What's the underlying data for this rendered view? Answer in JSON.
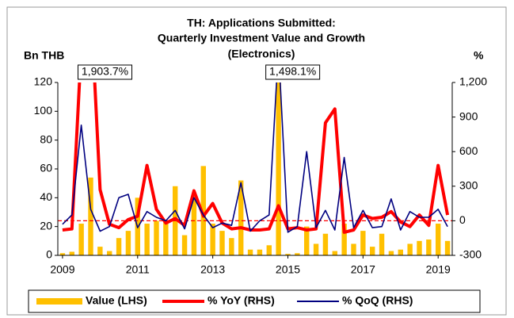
{
  "chart_data": {
    "type": "bar_line_combo",
    "title": [
      "TH: Applications Submitted:",
      "Quarterly Investment Value and Growth",
      "(Electronics)"
    ],
    "y_label": "Bn THB",
    "y2_label": "%",
    "categories": [
      "2009",
      null,
      null,
      null,
      null,
      null,
      null,
      null,
      "2011",
      null,
      null,
      null,
      null,
      null,
      null,
      null,
      "2013",
      null,
      null,
      null,
      null,
      null,
      null,
      null,
      "2015",
      null,
      null,
      null,
      null,
      null,
      null,
      null,
      "2017",
      null,
      null,
      null,
      null,
      null,
      null,
      null,
      "2019",
      null
    ],
    "ylim": [
      0,
      120
    ],
    "yticks": [
      0,
      20,
      40,
      60,
      80,
      100,
      120
    ],
    "y2lim": [
      -300,
      1200
    ],
    "y2ticks": [
      -300,
      0,
      300,
      600,
      900,
      {
        "value": 1200,
        "label": "1,200"
      }
    ],
    "reference_line": {
      "axis": "y2",
      "value": 0,
      "color": "#ff0000",
      "dashed": true
    },
    "legend": "bottom",
    "series": [
      {
        "name": "Value (LHS)",
        "type": "bar",
        "color": "#ffc000",
        "values": [
          1.5,
          2.5,
          22,
          54,
          6,
          3,
          12,
          17,
          40,
          22,
          24,
          24,
          48,
          14,
          42,
          62,
          22,
          17,
          12,
          52,
          4,
          4,
          7,
          120,
          1,
          1.5,
          20,
          8,
          15,
          3,
          22,
          8,
          17,
          6,
          15,
          3,
          4,
          8,
          10,
          11,
          22,
          10
        ]
      },
      {
        "name": "% YoY (RHS)",
        "type": "line",
        "axis": "y2",
        "color": "#ff0000",
        "values": [
          -80,
          -70,
          1500,
          1903.7,
          270,
          -30,
          -60,
          10,
          40,
          480,
          100,
          -20,
          20,
          -40,
          260,
          40,
          150,
          -20,
          -70,
          -60,
          -80,
          -80,
          -70,
          130,
          -70,
          -60,
          -80,
          -70,
          850,
          970,
          -100,
          -80,
          50,
          20,
          30,
          80,
          -10,
          -50,
          50,
          -40,
          480,
          50
        ],
        "value_labels": [
          null,
          null,
          null,
          "1,903.7%",
          null,
          null,
          null,
          null,
          null,
          null,
          null,
          null,
          null,
          null,
          null,
          null,
          null,
          null,
          null,
          null,
          null,
          null,
          null,
          null,
          null,
          null,
          null,
          null,
          null,
          null,
          null,
          null,
          null,
          null,
          null,
          null,
          null,
          null,
          null,
          null,
          null,
          null
        ]
      },
      {
        "name": "% QoQ (RHS)",
        "type": "line",
        "axis": "y2",
        "color": "#000080",
        "values": [
          -30,
          50,
          830,
          100,
          -90,
          -50,
          200,
          230,
          -60,
          80,
          30,
          0,
          90,
          -70,
          200,
          50,
          -60,
          -20,
          -40,
          330,
          -90,
          0,
          50,
          1498.1,
          -99,
          -50,
          600,
          -60,
          90,
          -80,
          550,
          -60,
          90,
          -60,
          -50,
          190,
          -80,
          80,
          30,
          30,
          100,
          -50
        ],
        "value_labels": [
          null,
          null,
          null,
          null,
          null,
          null,
          null,
          null,
          null,
          null,
          null,
          null,
          null,
          null,
          null,
          null,
          null,
          null,
          null,
          null,
          null,
          null,
          null,
          "1,498.1%",
          null,
          null,
          null,
          null,
          null,
          null,
          null,
          null,
          null,
          null,
          null,
          null,
          null,
          null,
          null,
          null,
          null,
          null
        ]
      }
    ]
  }
}
